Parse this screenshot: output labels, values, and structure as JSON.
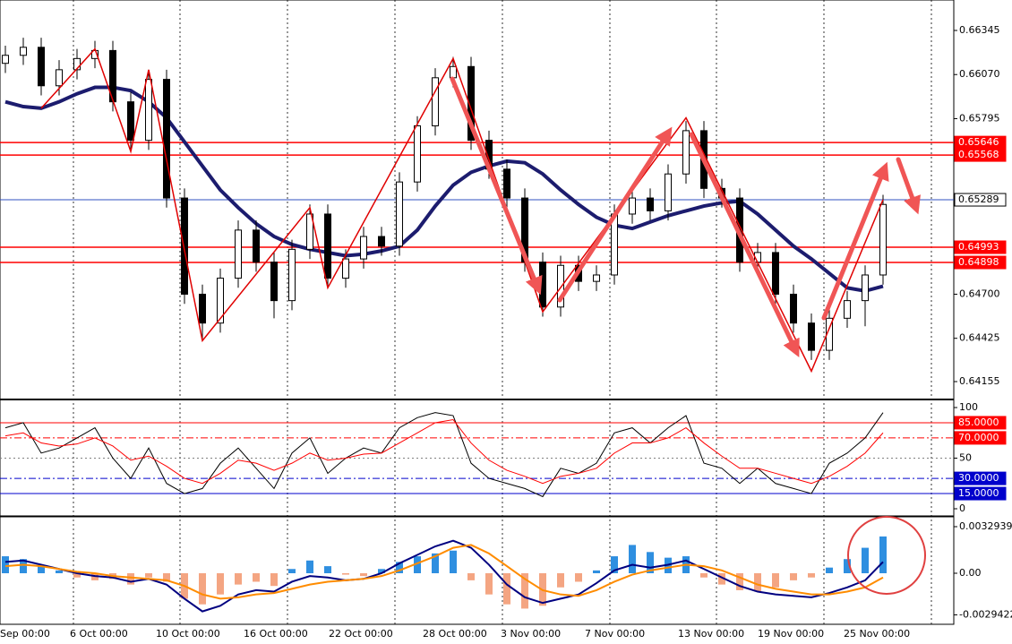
{
  "chart_data": [
    {
      "type": "candlestick",
      "time_labels": [
        "Sep 00:00",
        "6 Oct 00:00",
        "10 Oct 00:00",
        "16 Oct 00:00",
        "22 Oct 00:00",
        "28 Oct 00:00",
        "3 Nov 00:00",
        "7 Nov 00:00",
        "13 Nov 00:00",
        "19 Nov 00:00",
        "25 Nov 00:00"
      ],
      "ylim": [
        0.64049,
        0.66535
      ],
      "yticks": [
        0.66345,
        {
          "value": 0.6607,
          "label": "0.66070"
        },
        0.65795,
        {
          "value": 0.647,
          "label": "0.64700"
        },
        0.64425,
        0.64155
      ],
      "open": [
        0.6614,
        0.6619,
        0.6624,
        0.66,
        0.661,
        0.6617,
        0.6622,
        0.659,
        0.6566,
        0.6604,
        0.653,
        0.647,
        0.6452,
        0.648,
        0.651,
        0.649,
        0.6466,
        0.6498,
        0.652,
        0.648,
        0.6492,
        0.6506,
        0.65,
        0.654,
        0.6575,
        0.6605,
        0.6612,
        0.6566,
        0.6548,
        0.653,
        0.649,
        0.6462,
        0.6488,
        0.6478,
        0.6482,
        0.652,
        0.653,
        0.6522,
        0.6545,
        0.6572,
        0.6536,
        0.653,
        0.649,
        0.6496,
        0.647,
        0.6452,
        0.6435,
        0.6455,
        0.6466,
        0.6482
      ],
      "high": [
        0.6625,
        0.663,
        0.663,
        0.6616,
        0.6623,
        0.6628,
        0.6628,
        0.6596,
        0.661,
        0.661,
        0.6536,
        0.6476,
        0.6486,
        0.6516,
        0.6516,
        0.6496,
        0.6504,
        0.6526,
        0.6526,
        0.6498,
        0.6512,
        0.6512,
        0.6546,
        0.6581,
        0.6611,
        0.6618,
        0.6618,
        0.6572,
        0.6554,
        0.6536,
        0.6496,
        0.6494,
        0.6494,
        0.6488,
        0.6526,
        0.6536,
        0.6536,
        0.6551,
        0.6578,
        0.6578,
        0.6542,
        0.6536,
        0.6502,
        0.6502,
        0.6476,
        0.6458,
        0.6461,
        0.6472,
        0.6488,
        0.6532
      ],
      "low": [
        0.6608,
        0.6613,
        0.6594,
        0.6594,
        0.6604,
        0.6611,
        0.6584,
        0.656,
        0.656,
        0.6524,
        0.6464,
        0.6442,
        0.6446,
        0.6474,
        0.6484,
        0.6455,
        0.646,
        0.6492,
        0.6474,
        0.6474,
        0.6486,
        0.6494,
        0.6494,
        0.6534,
        0.6569,
        0.6599,
        0.656,
        0.6542,
        0.6524,
        0.6484,
        0.6456,
        0.6456,
        0.6472,
        0.6472,
        0.6476,
        0.6514,
        0.6516,
        0.6516,
        0.6539,
        0.653,
        0.6524,
        0.6484,
        0.6484,
        0.6464,
        0.6446,
        0.6429,
        0.6429,
        0.6449,
        0.645,
        0.6476
      ],
      "close": [
        0.6619,
        0.6624,
        0.66,
        0.661,
        0.6617,
        0.6622,
        0.659,
        0.6566,
        0.6604,
        0.653,
        0.647,
        0.6452,
        0.648,
        0.651,
        0.649,
        0.6466,
        0.6498,
        0.652,
        0.648,
        0.6492,
        0.6506,
        0.65,
        0.654,
        0.6575,
        0.6605,
        0.6612,
        0.6566,
        0.6548,
        0.653,
        0.649,
        0.6462,
        0.6488,
        0.6478,
        0.6482,
        0.652,
        0.653,
        0.6522,
        0.6545,
        0.6572,
        0.6536,
        0.653,
        0.649,
        0.6496,
        0.647,
        0.6452,
        0.6435,
        0.6455,
        0.6466,
        0.6482,
        0.6526
      ],
      "ma": {
        "color": "#1c1c6e",
        "values": [
          0.659,
          0.6587,
          0.6586,
          0.659,
          0.6595,
          0.6599,
          0.6599,
          0.6597,
          0.659,
          0.658,
          0.6565,
          0.655,
          0.6535,
          0.6524,
          0.6514,
          0.6506,
          0.6501,
          0.6498,
          0.6496,
          0.6494,
          0.6495,
          0.6497,
          0.65,
          0.651,
          0.6525,
          0.6538,
          0.6546,
          0.655,
          0.6553,
          0.6552,
          0.6545,
          0.6535,
          0.6526,
          0.6518,
          0.6513,
          0.6511,
          0.6515,
          0.6519,
          0.6522,
          0.6525,
          0.6527,
          0.6528,
          0.652,
          0.651,
          0.65,
          0.6492,
          0.6483,
          0.6474,
          0.6472,
          0.6475
        ]
      },
      "zigzag": {
        "color": "#e00000",
        "x": [
          2,
          5,
          7,
          8,
          11,
          17,
          18,
          25,
          30,
          38,
          45,
          49
        ],
        "values": [
          0.6586,
          0.6623,
          0.6559,
          0.661,
          0.6441,
          0.6524,
          0.6474,
          0.6617,
          0.6459,
          0.658,
          0.6422,
          0.6529
        ]
      },
      "levels": [
        {
          "value": 0.65646,
          "color": "#ff0000"
        },
        {
          "value": 0.65568,
          "color": "#ff0000"
        },
        {
          "value": 0.65289,
          "color": "#3050c0"
        },
        {
          "value": 0.64993,
          "color": "#ff0000"
        },
        {
          "value": 0.64898,
          "color": "#ff0000"
        }
      ]
    },
    {
      "type": "line",
      "ylim": [
        -6.2,
        106.2
      ],
      "yticks": [
        0,
        50,
        100
      ],
      "levels": [
        {
          "value": 85,
          "label": "85.0000",
          "color": "#ff0000",
          "style": "solid"
        },
        {
          "value": 70,
          "label": "70.0000",
          "color": "#ff0000",
          "style": "dashdot"
        },
        {
          "value": 50,
          "color": "#808080",
          "style": "dot"
        },
        {
          "value": 30,
          "label": "30.0000",
          "color": "#0000cc",
          "style": "dashdot"
        },
        {
          "value": 15,
          "label": "15.0000",
          "color": "#0000cc",
          "style": "solid"
        }
      ],
      "lines": [
        {
          "color": "#000000",
          "values": [
            80,
            85,
            55,
            60,
            70,
            80,
            50,
            30,
            60,
            25,
            15,
            20,
            45,
            60,
            40,
            20,
            55,
            70,
            35,
            50,
            60,
            55,
            80,
            90,
            95,
            92,
            45,
            30,
            25,
            20,
            12,
            40,
            35,
            45,
            75,
            80,
            65,
            80,
            92,
            45,
            40,
            25,
            40,
            25,
            20,
            15,
            45,
            55,
            70,
            95
          ]
        },
        {
          "color": "#ff0000",
          "values": [
            72,
            75,
            65,
            62,
            64,
            70,
            62,
            48,
            52,
            42,
            30,
            25,
            35,
            48,
            45,
            38,
            45,
            55,
            48,
            50,
            54,
            55,
            65,
            75,
            85,
            88,
            65,
            48,
            38,
            32,
            25,
            32,
            35,
            40,
            55,
            65,
            65,
            70,
            80,
            65,
            52,
            40,
            40,
            35,
            30,
            25,
            32,
            42,
            55,
            75
          ]
        }
      ]
    },
    {
      "type": "bar",
      "ylim": [
        -0.003611,
        0.003927
      ],
      "yticks": [
        0.0032939,
        {
          "value": 0,
          "label": "0.00"
        },
        -0.0029422
      ],
      "histogram": {
        "colors": [
          "#2f8fe0",
          "#f4a582"
        ],
        "values": [
          0.0012,
          0.001,
          0.0005,
          0.0002,
          -0.0003,
          -0.0005,
          -0.0004,
          -0.0008,
          -0.0003,
          -0.0006,
          -0.0018,
          -0.0022,
          -0.0015,
          -0.0008,
          -0.0006,
          -0.0009,
          0.0003,
          0.0009,
          0.0005,
          -0.0001,
          -0.0002,
          0.0003,
          0.0008,
          0.0012,
          0.0014,
          0.0016,
          -0.0005,
          -0.0015,
          -0.0022,
          -0.0025,
          -0.0023,
          -0.001,
          -0.0006,
          0.0002,
          0.0012,
          0.002,
          0.0015,
          0.0011,
          0.0012,
          -0.0003,
          -0.0008,
          -0.0012,
          -0.0013,
          -0.001,
          -0.0005,
          -0.0003,
          0.0004,
          0.001,
          0.0018,
          0.0026
        ]
      },
      "lines": [
        {
          "color": "#000080",
          "values": [
            0.0008,
            0.0009,
            0.0006,
            0.0003,
            0,
            -0.0002,
            -0.0003,
            -0.0006,
            -0.0004,
            -0.0008,
            -0.0018,
            -0.0027,
            -0.0023,
            -0.0015,
            -0.0012,
            -0.0013,
            -0.0006,
            -0.0002,
            -0.0003,
            -0.0005,
            -0.0004,
            0,
            0.0007,
            0.0013,
            0.0019,
            0.0023,
            0.0018,
            0.0006,
            -0.0008,
            -0.0017,
            -0.0021,
            -0.0018,
            -0.0015,
            -0.0007,
            0.0002,
            0.0006,
            0.0004,
            0.0006,
            0.0009,
            0.0003,
            -0.0003,
            -0.0009,
            -0.0013,
            -0.0015,
            -0.0016,
            -0.0017,
            -0.0014,
            -0.001,
            -0.0005,
            0.0008
          ]
        },
        {
          "color": "#ff8c00",
          "values": [
            0.0005,
            0.0006,
            0.0005,
            0.0003,
            0.0001,
            0,
            -0.0002,
            -0.0003,
            -0.0004,
            -0.0005,
            -0.0009,
            -0.0015,
            -0.0018,
            -0.0017,
            -0.0015,
            -0.0014,
            -0.0011,
            -0.0008,
            -0.0006,
            -0.0005,
            -0.0004,
            -0.0002,
            0.0002,
            0.0007,
            0.0012,
            0.0018,
            0.002,
            0.0014,
            0.0005,
            -0.0004,
            -0.0012,
            -0.0015,
            -0.0016,
            -0.0012,
            -0.0006,
            -0.0001,
            0.0002,
            0.0004,
            0.0006,
            0.0005,
            0.0002,
            -0.0003,
            -0.0008,
            -0.0011,
            -0.0013,
            -0.0015,
            -0.0015,
            -0.0013,
            -0.001,
            -0.0003
          ]
        }
      ]
    }
  ]
}
